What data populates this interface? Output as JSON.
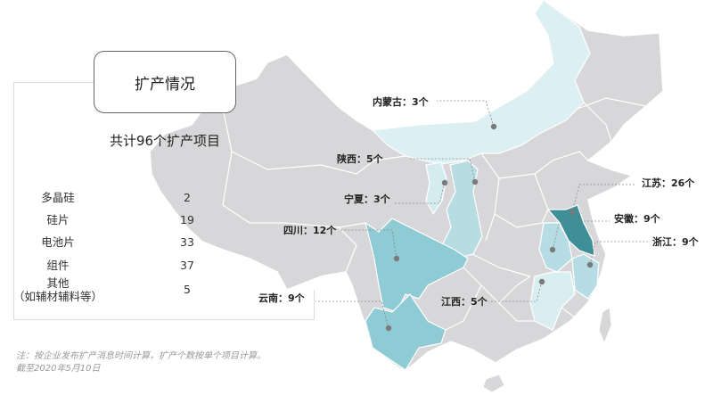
{
  "panel": {
    "title": "扩产情况",
    "total": "共计96个扩产项目",
    "rows": [
      {
        "label": "多晶硅",
        "value": "2"
      },
      {
        "label": "硅片",
        "value": "19"
      },
      {
        "label": "电池片",
        "value": "33"
      },
      {
        "label": "组件",
        "value": "37"
      },
      {
        "label": "其他",
        "sublabel": "（如辅材辅料等）",
        "value": "5"
      }
    ]
  },
  "footnote": {
    "line1": "注：按企业发布扩产消息时间计算，扩产个数按单个项目计算。",
    "line2": "截至2020年5月10日"
  },
  "map": {
    "base_color": "#d7d7d9",
    "provinces": [
      {
        "id": "neimenggu",
        "label": "内蒙古：3个",
        "count": 3,
        "color": "#dcf0f3"
      },
      {
        "id": "shaanxi",
        "label": "陕西：5个",
        "count": 5,
        "color": "#b7dde3"
      },
      {
        "id": "ningxia",
        "label": "宁夏：3个",
        "count": 3,
        "color": "#d4ecef"
      },
      {
        "id": "sichuan",
        "label": "四川：12个",
        "count": 12,
        "color": "#8fcbd4"
      },
      {
        "id": "yunnan",
        "label": "云南：9个",
        "count": 9,
        "color": "#8fcbd4"
      },
      {
        "id": "jiangxi",
        "label": "江西：5个",
        "count": 5,
        "color": "#d8eef0"
      },
      {
        "id": "jiangsu",
        "label": "江苏：26个",
        "count": 26,
        "color": "#3e8f97"
      },
      {
        "id": "anhui",
        "label": "安徽：9个",
        "count": 9,
        "color": "#b5dde3"
      },
      {
        "id": "zhejiang",
        "label": "浙江：9个",
        "count": 9,
        "color": "#b5dde3"
      }
    ]
  }
}
